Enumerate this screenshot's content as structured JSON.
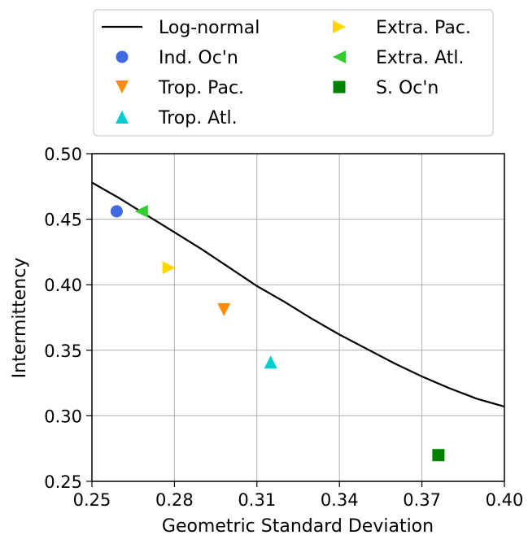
{
  "chart_data": {
    "type": "scatter",
    "title": "",
    "xlabel": "Geometric Standard Deviation",
    "ylabel": "Intermittency",
    "xlim": [
      0.25,
      0.4
    ],
    "ylim": [
      0.25,
      0.5
    ],
    "xticks": [
      0.25,
      0.28,
      0.31,
      0.34,
      0.37,
      0.4
    ],
    "xtick_labels": [
      "0.25",
      "0.28",
      "0.31",
      "0.34",
      "0.37",
      "0.40"
    ],
    "yticks": [
      0.25,
      0.3,
      0.35,
      0.4,
      0.45,
      0.5
    ],
    "ytick_labels": [
      "0.25",
      "0.30",
      "0.35",
      "0.40",
      "0.45",
      "0.50"
    ],
    "grid": true,
    "legend_position": "above plot, two columns",
    "curve": {
      "name": "Log-normal",
      "color": "#000000",
      "x": [
        0.25,
        0.26,
        0.27,
        0.28,
        0.29,
        0.3,
        0.31,
        0.32,
        0.33,
        0.34,
        0.35,
        0.36,
        0.37,
        0.38,
        0.39,
        0.4
      ],
      "y": [
        0.478,
        0.466,
        0.453,
        0.44,
        0.427,
        0.413,
        0.399,
        0.387,
        0.374,
        0.362,
        0.351,
        0.34,
        0.33,
        0.321,
        0.313,
        0.307
      ]
    },
    "series": [
      {
        "name": "Ind. Oc'n",
        "marker": "circle",
        "color": "#4169e1",
        "x": 0.259,
        "y": 0.456
      },
      {
        "name": "Trop. Pac.",
        "marker": "triangle-down",
        "color": "#ff8c00",
        "x": 0.298,
        "y": 0.381
      },
      {
        "name": "Trop. Atl.",
        "marker": "triangle-up",
        "color": "#00ced1",
        "x": 0.315,
        "y": 0.341
      },
      {
        "name": "Extra. Pac.",
        "marker": "triangle-right",
        "color": "#ffd700",
        "x": 0.278,
        "y": 0.413
      },
      {
        "name": "Extra. Atl.",
        "marker": "triangle-left",
        "color": "#32cd32",
        "x": 0.268,
        "y": 0.456
      },
      {
        "name": "S. Oc'n",
        "marker": "square",
        "color": "#008000",
        "x": 0.376,
        "y": 0.27
      }
    ]
  }
}
